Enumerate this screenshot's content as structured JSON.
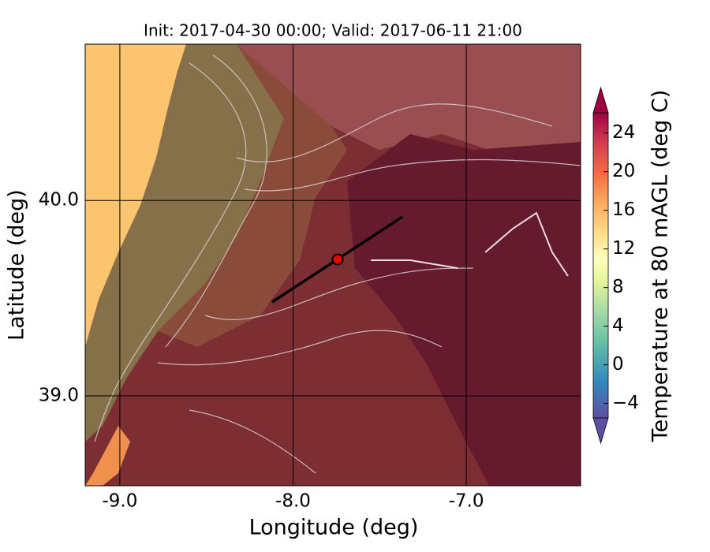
{
  "chart_data": {
    "type": "map",
    "title": "Init: 2017-04-30 00:00; Valid: 2017-06-11 21:00",
    "x_label": "Longitude (deg)",
    "y_label": "Latitude (deg)",
    "xlim": [
      -9.2,
      -6.34
    ],
    "ylim": [
      38.54,
      40.8
    ],
    "xticks": [
      {
        "value": -9,
        "label": "-9.0"
      },
      {
        "value": -8,
        "label": "-8.0"
      },
      {
        "value": -7,
        "label": "-7.0"
      }
    ],
    "yticks": [
      {
        "value": 40,
        "label": "40.0"
      },
      {
        "value": 39,
        "label": "39.0"
      }
    ],
    "grid": true,
    "colorbar": {
      "label": "Temperature at 80 mAGL (deg C)",
      "clim": [
        -5.5,
        26.1
      ],
      "ticks": [
        24,
        20,
        16,
        12,
        8,
        4,
        0,
        {
          "value": -4,
          "label": "−4"
        }
      ]
    }
  }
}
